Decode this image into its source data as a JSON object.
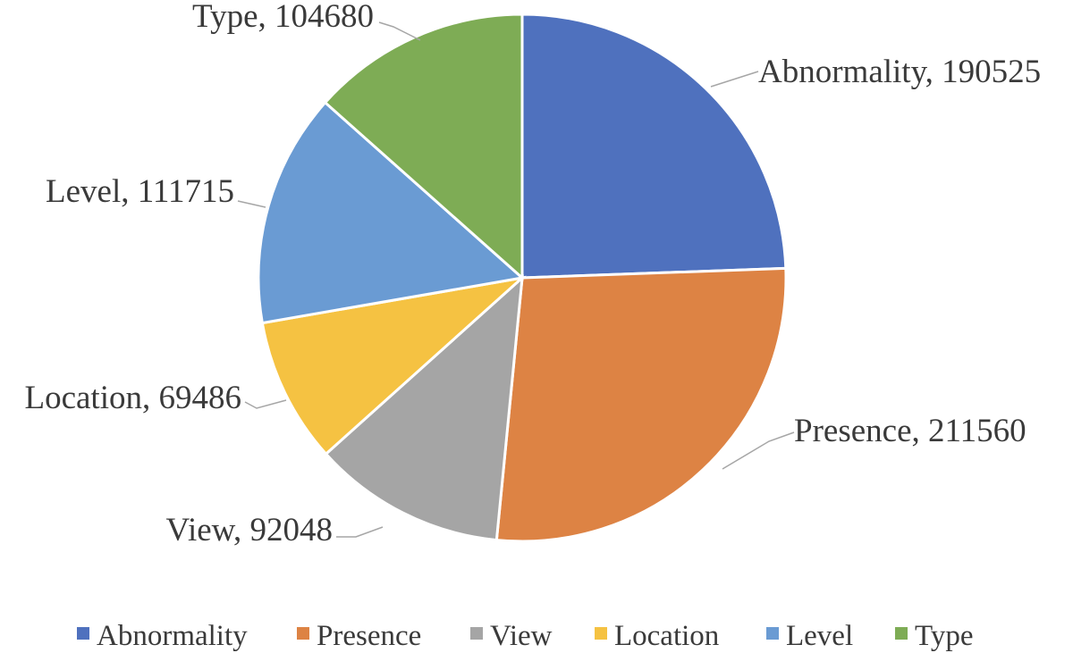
{
  "chart_data": {
    "type": "pie",
    "title": "",
    "start": "12 o'clock, clockwise",
    "legend_position": "bottom",
    "slices": [
      {
        "name": "Abnormality",
        "value": 190525,
        "label": "Abnormality, 190525",
        "color": "#4F71BE"
      },
      {
        "name": "Presence",
        "value": 211560,
        "label": "Presence, 211560",
        "color": "#DD8344"
      },
      {
        "name": "View",
        "value": 92048,
        "label": "View, 92048",
        "color": "#A5A5A5"
      },
      {
        "name": "Location",
        "value": 69486,
        "label": "Location, 69486",
        "color": "#F5C242"
      },
      {
        "name": "Level",
        "value": 111715,
        "label": "Level, 111715",
        "color": "#6A9BD3"
      },
      {
        "name": "Type",
        "value": 104680,
        "label": "Type, 104680",
        "color": "#7EAC55"
      }
    ]
  }
}
